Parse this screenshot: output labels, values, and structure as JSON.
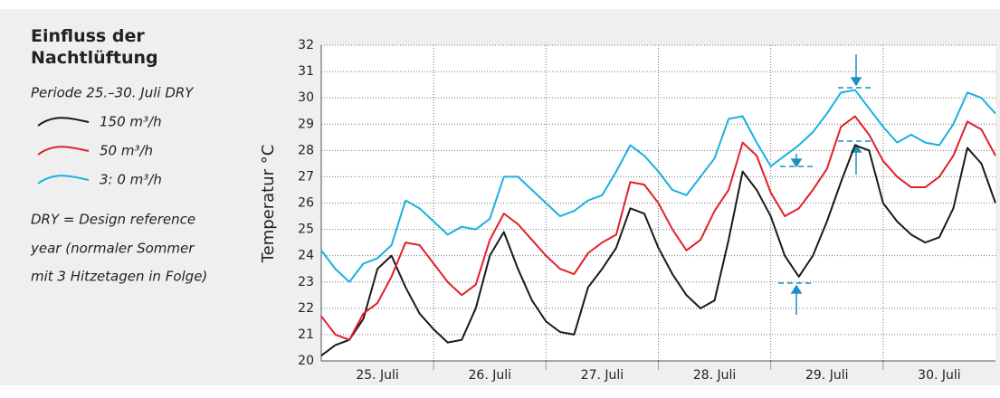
{
  "chart_data": {
    "type": "line",
    "title": "Einfluss der Nachtlüftung",
    "subtitle": "Periode 25.–30. Juli DRY",
    "note_lines": [
      "DRY = Design reference",
      "year (normaler Sommer",
      "mit 3 Hitzetagen in Folge)"
    ],
    "ylabel": "Temperatur °C",
    "x": [
      0,
      3,
      6,
      9,
      12,
      15,
      18,
      21,
      24,
      27,
      30,
      33,
      36,
      39,
      42,
      45,
      48,
      51,
      54,
      57,
      60,
      63,
      66,
      69,
      72,
      75,
      78,
      81,
      84,
      87,
      90,
      93,
      96,
      99,
      102,
      105,
      108,
      111,
      114,
      117,
      120,
      123,
      126,
      129,
      132,
      135,
      138,
      141,
      144
    ],
    "xlim": [
      0,
      144
    ],
    "xticks": [
      {
        "value": 12,
        "label": "25. Juli"
      },
      {
        "value": 36,
        "label": "26. Juli"
      },
      {
        "value": 60,
        "label": "27. Juli"
      },
      {
        "value": 84,
        "label": "28. Juli"
      },
      {
        "value": 108,
        "label": "29. Juli"
      },
      {
        "value": 132,
        "label": "30. Juli"
      }
    ],
    "xgrid": [
      24,
      48,
      72,
      96,
      120
    ],
    "ylim": [
      20,
      32
    ],
    "yticks": [
      20,
      21,
      22,
      23,
      24,
      25,
      26,
      27,
      28,
      29,
      30,
      31,
      32
    ],
    "grid": true,
    "series": [
      {
        "name": "150 m³/h",
        "color": "#1a1a1a",
        "values": [
          20.2,
          20.6,
          20.8,
          21.6,
          23.5,
          24.0,
          22.8,
          21.8,
          21.2,
          20.7,
          20.8,
          22.0,
          24.0,
          24.9,
          23.5,
          22.3,
          21.5,
          21.1,
          21.0,
          22.8,
          23.5,
          24.3,
          25.8,
          25.6,
          24.3,
          23.3,
          22.5,
          22.0,
          22.3,
          24.6,
          27.2,
          26.5,
          25.5,
          24.0,
          23.2,
          24.0,
          25.3,
          26.8,
          28.2,
          28.0,
          26.0,
          25.3,
          24.8,
          24.5,
          24.7,
          25.8,
          28.1,
          27.5,
          26.0
        ]
      },
      {
        "name": "50 m³/h",
        "color": "#e2202b",
        "values": [
          21.7,
          21.0,
          20.8,
          21.8,
          22.2,
          23.2,
          24.5,
          24.4,
          23.7,
          23.0,
          22.5,
          22.9,
          24.6,
          25.6,
          25.2,
          24.6,
          24.0,
          23.5,
          23.3,
          24.1,
          24.5,
          24.8,
          26.8,
          26.7,
          26.0,
          25.0,
          24.2,
          24.6,
          25.7,
          26.5,
          28.3,
          27.8,
          26.4,
          25.5,
          25.8,
          26.5,
          27.3,
          28.9,
          29.3,
          28.6,
          27.6,
          27.0,
          26.6,
          26.6,
          27.0,
          27.8,
          29.1,
          28.8,
          27.8
        ]
      },
      {
        "name": "3: 0 m³/h",
        "color": "#1ab0e0",
        "values": [
          24.2,
          23.5,
          23.0,
          23.7,
          23.9,
          24.4,
          26.1,
          25.8,
          25.3,
          24.8,
          25.1,
          25.0,
          25.4,
          27.0,
          27.0,
          26.5,
          26.0,
          25.5,
          25.7,
          26.1,
          26.3,
          27.2,
          28.2,
          27.8,
          27.2,
          26.5,
          26.3,
          27.0,
          27.7,
          29.2,
          29.3,
          28.3,
          27.4,
          27.8,
          28.2,
          28.7,
          29.4,
          30.2,
          30.3,
          29.6,
          28.9,
          28.3,
          28.6,
          28.3,
          28.2,
          29.0,
          30.2,
          30.0,
          29.4
        ]
      }
    ]
  }
}
